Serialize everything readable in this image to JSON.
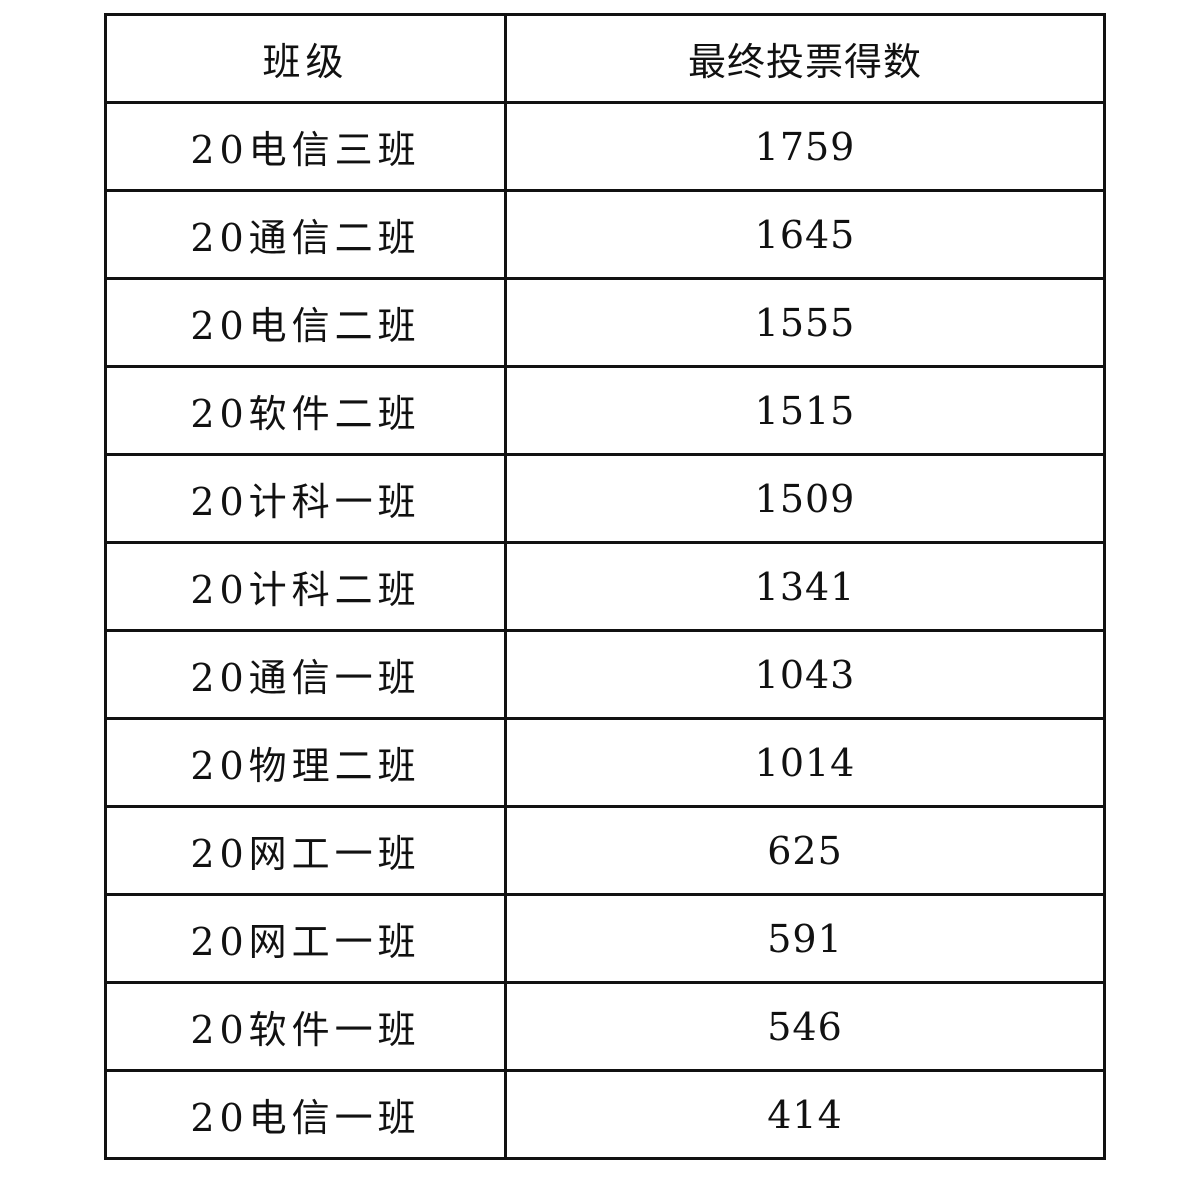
{
  "table": {
    "headers": [
      "班级",
      "最终投票得数"
    ],
    "rows": [
      {
        "class": "20电信三班",
        "votes": "1759"
      },
      {
        "class": "20通信二班",
        "votes": "1645"
      },
      {
        "class": "20电信二班",
        "votes": "1555"
      },
      {
        "class": "20软件二班",
        "votes": "1515"
      },
      {
        "class": "20计科一班",
        "votes": "1509"
      },
      {
        "class": "20计科二班",
        "votes": "1341"
      },
      {
        "class": "20通信一班",
        "votes": "1043"
      },
      {
        "class": "20物理二班",
        "votes": "1014"
      },
      {
        "class": "20网工一班",
        "votes": "625"
      },
      {
        "class": "20网工一班",
        "votes": "591"
      },
      {
        "class": "20软件一班",
        "votes": "546"
      },
      {
        "class": "20电信一班",
        "votes": "414"
      }
    ]
  }
}
